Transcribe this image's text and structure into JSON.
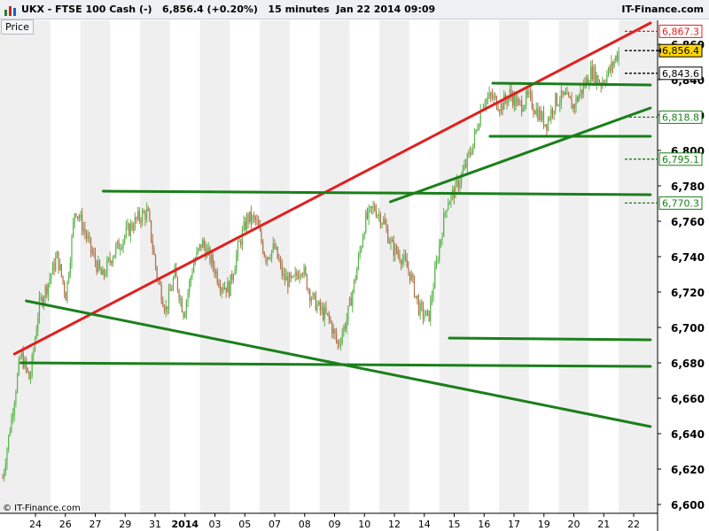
{
  "header": {
    "symbol": "UKX",
    "title": "UKX - FTSE 100 Cash (-)   6,856.4 (+0.20%)   15 minutes  Jan 22 2014 09:09",
    "brand": "IT-Finance.com"
  },
  "panel_label": "Price",
  "copyright": "© IT-Finance.com",
  "colors": {
    "up_candle": "#5ab34c",
    "down_candle": "#b07048",
    "support": "#1a7f1a",
    "resistance": "#e02020",
    "band": "#efefef"
  },
  "chart_data": {
    "type": "candlestick",
    "title": "UKX - FTSE 100 Cash (-)",
    "last_price": 6856.4,
    "change_pct": 0.2,
    "interval": "15 minutes",
    "timestamp": "Jan 22 2014 09:09",
    "ylim": [
      6600,
      6880
    ],
    "y_ticks": [
      "6,600",
      "6,620",
      "6,640",
      "6,660",
      "6,680",
      "6,700",
      "6,720",
      "6,740",
      "6,760",
      "6,780",
      "6,800",
      "6,820",
      "6,840",
      "6,860"
    ],
    "y_tick_values": [
      6600,
      6620,
      6640,
      6660,
      6680,
      6700,
      6720,
      6740,
      6760,
      6780,
      6800,
      6820,
      6840,
      6860
    ],
    "x_ticks": [
      "24",
      "26",
      "27",
      "29",
      "31",
      "2014",
      "03",
      "05",
      "07",
      "08",
      "09",
      "10",
      "12",
      "14",
      "15",
      "16",
      "17",
      "19",
      "20",
      "21",
      "22"
    ],
    "price_markers": [
      {
        "label": "6,867.3",
        "value": 6867.3,
        "color": "#e02020",
        "fill": "#ffffff"
      },
      {
        "label": "6,856.4",
        "value": 6856.4,
        "color": "#000000",
        "fill": "#ffd700"
      },
      {
        "label": "6,843.6",
        "value": 6843.6,
        "color": "#000000",
        "fill": "#ffffff"
      },
      {
        "label": "6,818.8",
        "value": 6818.8,
        "color": "#1a7f1a",
        "fill": "#ffffff"
      },
      {
        "label": "6,795.1",
        "value": 6795.1,
        "color": "#1a7f1a",
        "fill": "#ffffff"
      },
      {
        "label": "6,770.3",
        "value": 6770.3,
        "color": "#1a7f1a",
        "fill": "#ffffff"
      }
    ],
    "price_path": [
      [
        0,
        6615
      ],
      [
        1,
        6650
      ],
      [
        2,
        6685
      ],
      [
        3,
        6670
      ],
      [
        4,
        6712
      ],
      [
        5,
        6725
      ],
      [
        6,
        6740
      ],
      [
        7,
        6718
      ],
      [
        8,
        6768
      ],
      [
        9,
        6755
      ],
      [
        10,
        6740
      ],
      [
        11,
        6728
      ],
      [
        12,
        6740
      ],
      [
        13,
        6748
      ],
      [
        14,
        6756
      ],
      [
        15,
        6762
      ],
      [
        16,
        6765
      ],
      [
        17,
        6730
      ],
      [
        18,
        6710
      ],
      [
        19,
        6730
      ],
      [
        20,
        6708
      ],
      [
        21,
        6735
      ],
      [
        22,
        6748
      ],
      [
        23,
        6738
      ],
      [
        24,
        6725
      ],
      [
        25,
        6722
      ],
      [
        26,
        6745
      ],
      [
        27,
        6762
      ],
      [
        28,
        6760
      ],
      [
        29,
        6740
      ],
      [
        30,
        6745
      ],
      [
        31,
        6728
      ],
      [
        32,
        6725
      ],
      [
        33,
        6735
      ],
      [
        34,
        6718
      ],
      [
        35,
        6710
      ],
      [
        36,
        6705
      ],
      [
        37,
        6690
      ],
      [
        38,
        6705
      ],
      [
        39,
        6730
      ],
      [
        40,
        6760
      ],
      [
        41,
        6768
      ],
      [
        42,
        6760
      ],
      [
        43,
        6745
      ],
      [
        44,
        6740
      ],
      [
        45,
        6730
      ],
      [
        46,
        6710
      ],
      [
        47,
        6705
      ],
      [
        48,
        6740
      ],
      [
        49,
        6770
      ],
      [
        50,
        6778
      ],
      [
        51,
        6790
      ],
      [
        52,
        6805
      ],
      [
        53,
        6828
      ],
      [
        54,
        6830
      ],
      [
        55,
        6825
      ],
      [
        56,
        6832
      ],
      [
        57,
        6825
      ],
      [
        58,
        6830
      ],
      [
        59,
        6822
      ],
      [
        60,
        6815
      ],
      [
        61,
        6828
      ],
      [
        62,
        6830
      ],
      [
        63,
        6825
      ],
      [
        64,
        6835
      ],
      [
        65,
        6845
      ],
      [
        66,
        6838
      ],
      [
        67,
        6845
      ],
      [
        68,
        6856
      ]
    ],
    "trendlines": [
      {
        "name": "resistance",
        "color": "#e02020",
        "from": [
          1.3,
          6685
        ],
        "to": [
          71.5,
          6872
        ]
      },
      {
        "name": "support",
        "color": "#1a7f1a",
        "from": [
          2.6,
          6715
        ],
        "to": [
          71.5,
          6644
        ]
      },
      {
        "name": "support",
        "color": "#1a7f1a",
        "from": [
          2.0,
          6680
        ],
        "to": [
          71.5,
          6678
        ]
      },
      {
        "name": "support",
        "color": "#1a7f1a",
        "from": [
          49.3,
          6694
        ],
        "to": [
          71.5,
          6693
        ]
      },
      {
        "name": "support",
        "color": "#1a7f1a",
        "from": [
          11.1,
          6777
        ],
        "to": [
          71.5,
          6775
        ]
      },
      {
        "name": "support",
        "color": "#1a7f1a",
        "from": [
          42.8,
          6771
        ],
        "to": [
          71.5,
          6824
        ]
      },
      {
        "name": "support",
        "color": "#1a7f1a",
        "from": [
          53.8,
          6808
        ],
        "to": [
          71.5,
          6808
        ]
      },
      {
        "name": "support",
        "color": "#1a7f1a",
        "from": [
          54.1,
          6838
        ],
        "to": [
          71.5,
          6837
        ]
      }
    ],
    "candles_count": 420,
    "grid": false,
    "legend": "none"
  }
}
